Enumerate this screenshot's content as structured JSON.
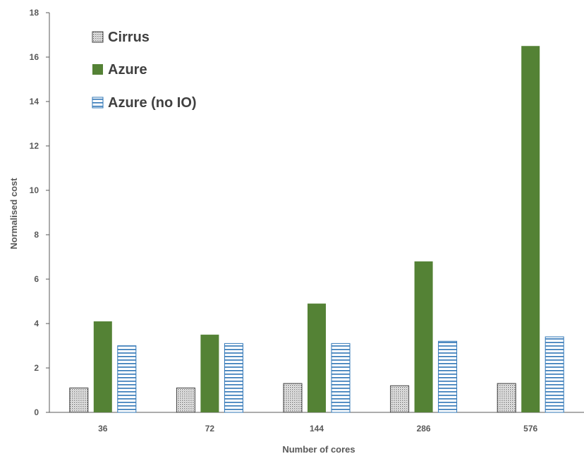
{
  "chart_data": {
    "type": "bar",
    "title": "",
    "xlabel": "Number of cores",
    "ylabel": "Normalised cost",
    "categories": [
      "36",
      "72",
      "144",
      "286",
      "576"
    ],
    "ylim": [
      0,
      18
    ],
    "yticks": [
      "0",
      "2",
      "4",
      "6",
      "8",
      "10",
      "12",
      "14",
      "16",
      "18"
    ],
    "grid": false,
    "legend_position": "top-left",
    "series": [
      {
        "name": "Cirrus",
        "values": [
          1.1,
          1.1,
          1.3,
          1.2,
          1.3
        ],
        "color": "#a6a6a6",
        "pattern": "dotted"
      },
      {
        "name": "Azure",
        "values": [
          4.1,
          3.5,
          4.9,
          6.8,
          16.5
        ],
        "color": "#548235",
        "pattern": "solid"
      },
      {
        "name": "Azure (no IO)",
        "values": [
          3.0,
          3.1,
          3.1,
          3.2,
          3.4
        ],
        "color": "#2e75b6",
        "pattern": "horizontal-stripes"
      }
    ]
  }
}
